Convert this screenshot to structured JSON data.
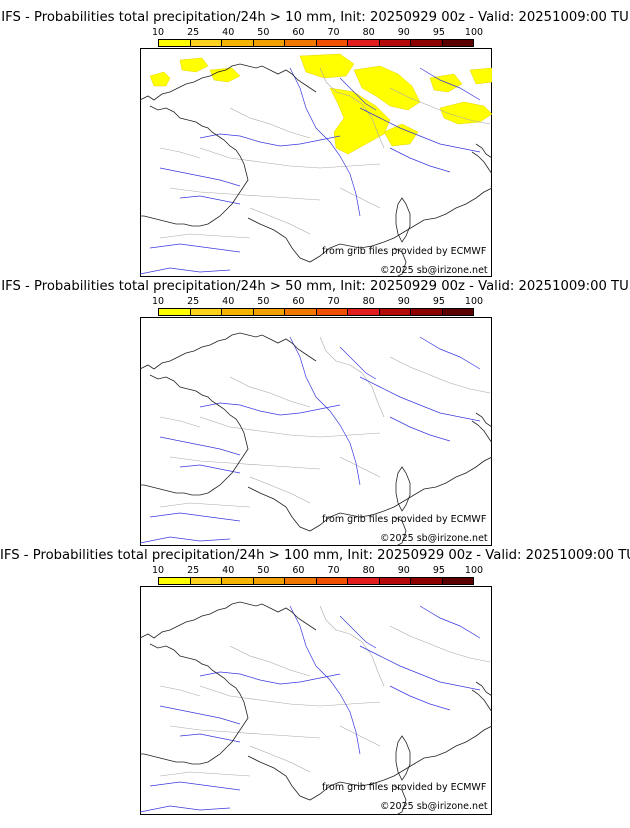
{
  "colorbar": {
    "ticks": [
      "10",
      "25",
      "40",
      "50",
      "60",
      "70",
      "80",
      "90",
      "95",
      "100"
    ],
    "colors": [
      "#ffff00",
      "#ffd21e",
      "#f5b400",
      "#f0a000",
      "#f07800",
      "#f05000",
      "#e01e1e",
      "#b40a0a",
      "#8c0000",
      "#5a0000"
    ]
  },
  "panels": [
    {
      "title": "IFS - Probabilities total precipitation/24h > 10 mm, Init: 20250929 00z - Valid: 20251009:00 TU",
      "credit": "from grib files provided by ECMWF",
      "copyright": "©2025 sb@irizone.net",
      "precip_areas": true
    },
    {
      "title": "IFS - Probabilities total precipitation/24h > 50 mm, Init: 20250929 00z - Valid: 20251009:00 TU",
      "credit": "from grib files provided by ECMWF",
      "copyright": "©2025 sb@irizone.net",
      "precip_areas": false
    },
    {
      "title": "IFS - Probabilities total precipitation/24h > 100 mm, Init: 20250929 00z - Valid: 20251009:00 TU",
      "credit": "from grib files provided by ECMWF",
      "copyright": "©2025 sb@irizone.net",
      "precip_areas": false
    }
  ]
}
